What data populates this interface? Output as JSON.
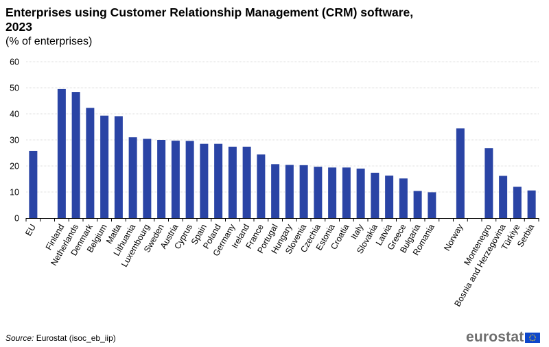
{
  "chart_data": {
    "type": "bar",
    "title": "Enterprises using Customer Relationship Management (CRM) software, 2023",
    "subtitle": "(% of enterprises)",
    "xlabel": "",
    "ylabel": "",
    "ylim": [
      0,
      60
    ],
    "yticks": [
      0,
      10,
      20,
      30,
      40,
      50,
      60
    ],
    "grid": true,
    "legend": "none",
    "bar_color": "#2A44A5",
    "categories": [
      "EU",
      "",
      "Finland",
      "Netherlands",
      "Denmark",
      "Belgium",
      "Malta",
      "Lithuania",
      "Luxembourg",
      "Sweden",
      "Austria",
      "Cyprus",
      "Spain",
      "Poland",
      "Germany",
      "Ireland",
      "France",
      "Portugal",
      "Hungary",
      "Slovenia",
      "Czechia",
      "Estonia",
      "Croatia",
      "Italy",
      "Slovakia",
      "Latvia",
      "Greece",
      "Bulgaria",
      "Romania",
      "",
      "Norway",
      "",
      "Montenegro",
      "Bosnia and Herzegovina",
      "Türkiye",
      "Serbia"
    ],
    "values": [
      25.8,
      null,
      49.5,
      48.4,
      42.3,
      39.3,
      39.1,
      31.0,
      30.4,
      30.0,
      29.7,
      29.6,
      28.5,
      28.5,
      27.4,
      27.4,
      24.4,
      20.7,
      20.4,
      20.3,
      19.7,
      19.4,
      19.4,
      19.0,
      17.4,
      16.3,
      15.2,
      10.4,
      9.9,
      null,
      34.4,
      null,
      26.8,
      16.2,
      12.0,
      10.6
    ]
  },
  "header": {
    "title": "Enterprises using Customer Relationship Management (CRM) software, 2023",
    "subtitle": "(% of enterprises)"
  },
  "footer": {
    "source_label": "Source:",
    "source_text": " Eurostat (isoc_eb_iip)",
    "logo_text": "eurostat"
  }
}
